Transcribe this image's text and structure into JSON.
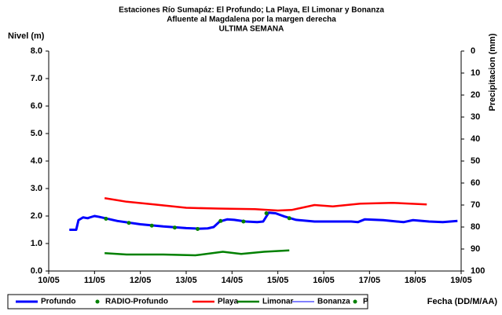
{
  "chart_data": {
    "type": "line",
    "title": "Estaciones Río Sumapáz: El Profundo; La Playa, El Limonar y Bonanza",
    "subtitle": "Afluente al Magdalena por la margen derecha",
    "subtitle2": "ULTIMA SEMANA",
    "ylabel": "Nivel (m)",
    "y2label": "Precipitacion (mm)",
    "xlabel": "Fecha (DD/M/AA)",
    "xlim": [
      10,
      19
    ],
    "xticks": [
      {
        "value": 10,
        "label": "10/05"
      },
      {
        "value": 11,
        "label": "11/05"
      },
      {
        "value": 12,
        "label": "12/05"
      },
      {
        "value": 13,
        "label": "13/05"
      },
      {
        "value": 14,
        "label": "14/05"
      },
      {
        "value": 15,
        "label": "15/05"
      },
      {
        "value": 16,
        "label": "16/05"
      },
      {
        "value": 17,
        "label": "17/05"
      },
      {
        "value": 18,
        "label": "18/05"
      },
      {
        "value": 19,
        "label": "19/05"
      }
    ],
    "ylim": [
      0,
      8
    ],
    "yticks": [
      {
        "value": 0,
        "label": "0.0"
      },
      {
        "value": 1,
        "label": "1.0"
      },
      {
        "value": 2,
        "label": "2.0"
      },
      {
        "value": 3,
        "label": "3.0"
      },
      {
        "value": 4,
        "label": "4.0"
      },
      {
        "value": 5,
        "label": "5.0"
      },
      {
        "value": 6,
        "label": "6.0"
      },
      {
        "value": 7,
        "label": "7.0"
      },
      {
        "value": 8,
        "label": "8.0"
      }
    ],
    "y2lim": [
      100,
      0
    ],
    "y2ticks": [
      0,
      10,
      20,
      30,
      40,
      50,
      60,
      70,
      80,
      90,
      100
    ],
    "grid": false,
    "legend": "bottom",
    "series": [
      {
        "name": "Profundo",
        "color": "#0000ff",
        "style": "line",
        "width": 3,
        "x": [
          10.45,
          10.6,
          10.65,
          10.75,
          10.85,
          10.9,
          11.0,
          11.1,
          11.5,
          12.0,
          12.5,
          13.0,
          13.3,
          13.47,
          13.6,
          13.73,
          13.9,
          14.05,
          14.3,
          14.55,
          14.68,
          14.8,
          14.95,
          15.15,
          15.4,
          15.8,
          16.2,
          16.6,
          16.75,
          16.9,
          17.3,
          17.6,
          17.75,
          17.95,
          18.3,
          18.6,
          18.92
        ],
        "values": [
          1.5,
          1.5,
          1.85,
          1.95,
          1.92,
          1.95,
          2.0,
          1.97,
          1.82,
          1.7,
          1.62,
          1.56,
          1.54,
          1.55,
          1.6,
          1.8,
          1.88,
          1.86,
          1.8,
          1.78,
          1.8,
          2.12,
          2.1,
          1.98,
          1.86,
          1.8,
          1.8,
          1.8,
          1.78,
          1.88,
          1.85,
          1.8,
          1.78,
          1.85,
          1.8,
          1.78,
          1.82
        ]
      },
      {
        "name": "RADIO-Profundo",
        "color": "#008000",
        "style": "marker",
        "x": [
          11.25,
          11.75,
          12.25,
          12.75,
          13.25,
          13.75,
          14.25,
          14.75,
          15.25
        ],
        "values": [
          1.9,
          1.75,
          1.65,
          1.58,
          1.53,
          1.82,
          1.8,
          2.1,
          1.92
        ]
      },
      {
        "name": "Playa",
        "color": "#ff0000",
        "style": "line",
        "width": 2.5,
        "x": [
          11.22,
          11.7,
          12.3,
          13.0,
          13.7,
          14.5,
          15.0,
          15.3,
          15.8,
          16.2,
          16.8,
          17.5,
          18.25
        ],
        "values": [
          2.65,
          2.52,
          2.42,
          2.3,
          2.27,
          2.25,
          2.2,
          2.22,
          2.4,
          2.35,
          2.45,
          2.48,
          2.42
        ]
      },
      {
        "name": "Limonar",
        "color": "#008000",
        "style": "line",
        "width": 2.5,
        "x": [
          11.22,
          11.7,
          12.5,
          13.2,
          13.8,
          14.2,
          14.7,
          15.25
        ],
        "values": [
          0.65,
          0.6,
          0.6,
          0.57,
          0.7,
          0.62,
          0.7,
          0.75
        ]
      },
      {
        "name": "Bonanza",
        "color": "#0000ff",
        "style": "line",
        "width": 1,
        "x": [],
        "values": []
      },
      {
        "name": "P",
        "color": "#008000",
        "style": "marker",
        "axis": "y2",
        "x": [],
        "values": []
      }
    ]
  }
}
